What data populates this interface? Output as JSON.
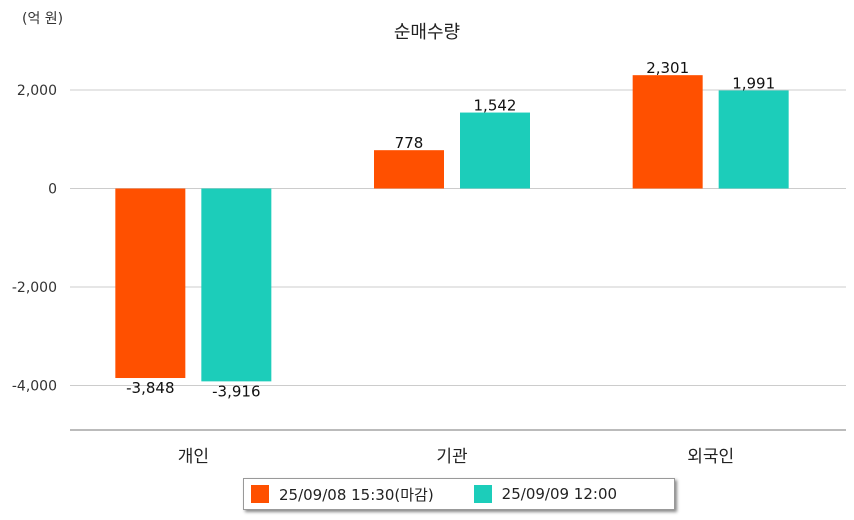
{
  "unit_label": "(억 원)",
  "colors": {
    "series1": "#FF5000",
    "series2": "#1CCDBA",
    "grid": "#cccccc",
    "axis": "#777777"
  },
  "legend": {
    "item1": "25/09/08 15:30(마감)",
    "item2": "25/09/09 12:00"
  },
  "chart_data": {
    "type": "bar",
    "title": "순매수량",
    "xlabel": "",
    "ylabel": "",
    "ylim": [
      -4900,
      2900
    ],
    "yticks": [
      -4000,
      -2000,
      0,
      2000
    ],
    "ytick_labels": [
      "-4,000",
      "-2,000",
      "0",
      "2,000"
    ],
    "grid": true,
    "legend_position": "bottom",
    "categories": [
      "개인",
      "기관",
      "외국인"
    ],
    "series": [
      {
        "name": "25/09/08 15:30(마감)",
        "values": [
          -3848,
          778,
          2301
        ],
        "labels": [
          "-3,848",
          "778",
          "2,301"
        ]
      },
      {
        "name": "25/09/09 12:00",
        "values": [
          -3916,
          1542,
          1991
        ],
        "labels": [
          "-3,916",
          "1,542",
          "1,991"
        ]
      }
    ]
  }
}
